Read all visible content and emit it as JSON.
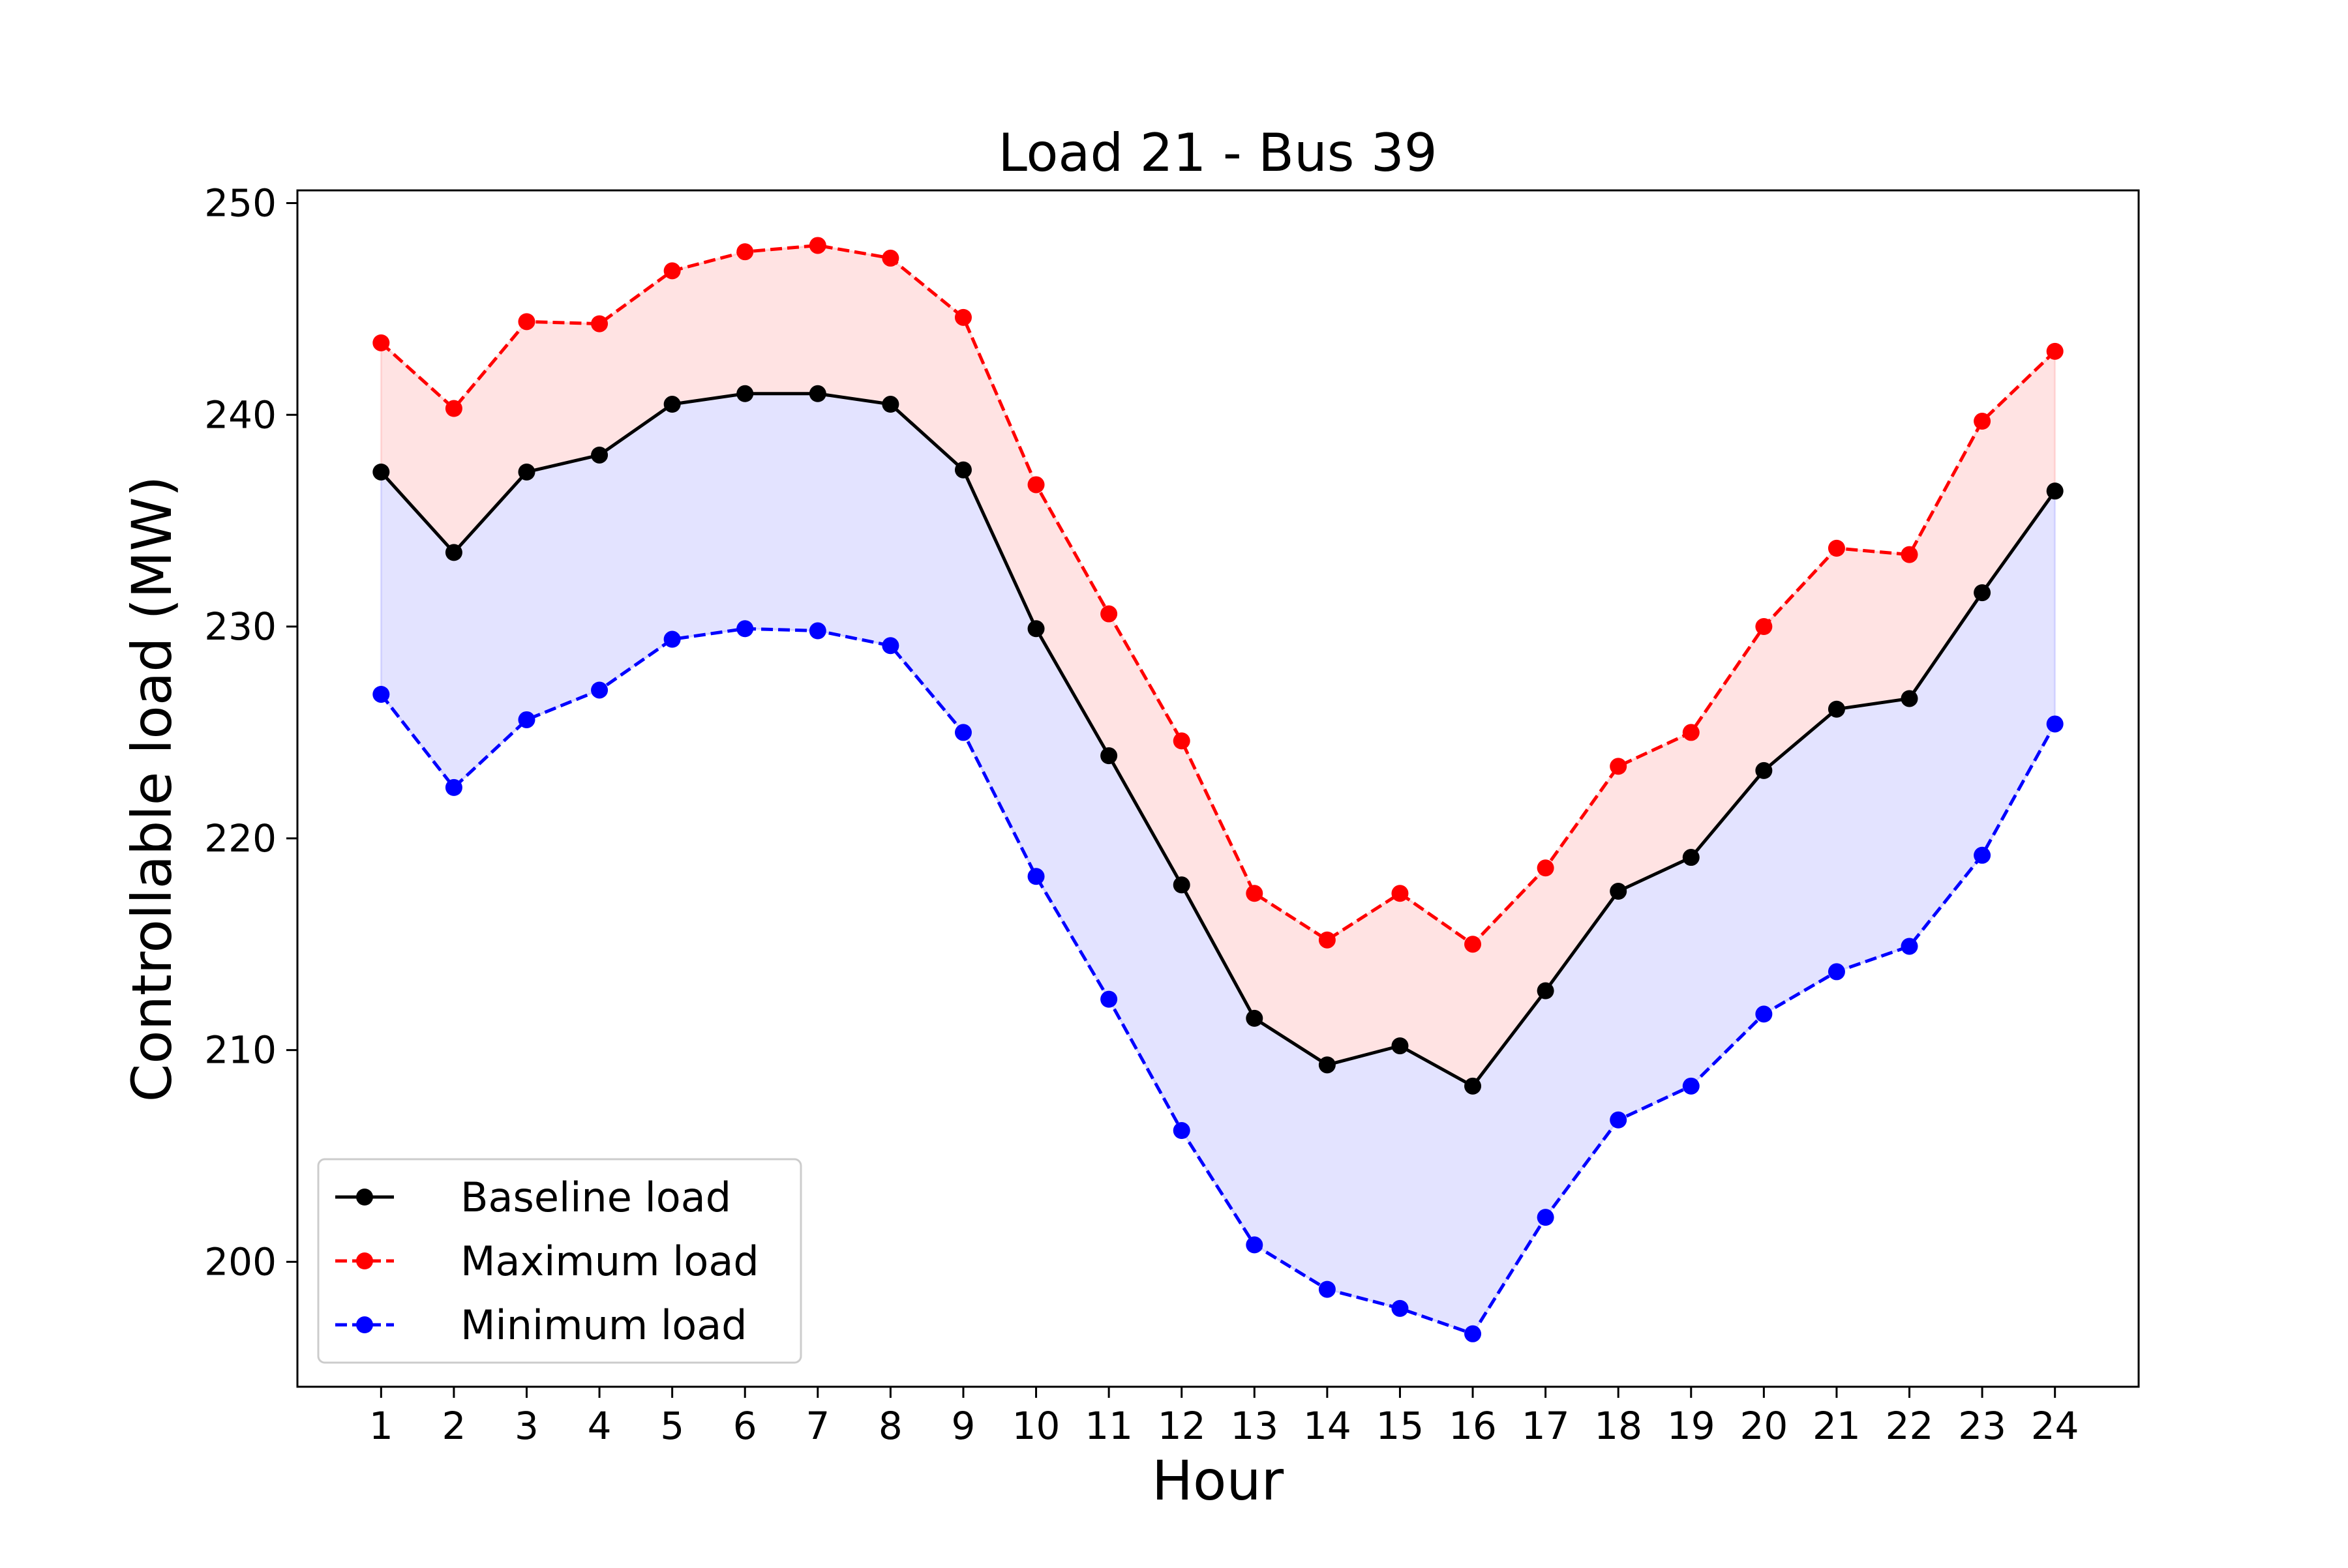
{
  "chart_data": {
    "type": "line",
    "title": "Load 21 - Bus 39",
    "xlabel": "Hour",
    "ylabel": "Controllable load (MW)",
    "x": [
      1,
      2,
      3,
      4,
      5,
      6,
      7,
      8,
      9,
      10,
      11,
      12,
      13,
      14,
      15,
      16,
      17,
      18,
      19,
      20,
      21,
      22,
      23,
      24
    ],
    "x_tick_labels": [
      "1",
      "2",
      "3",
      "4",
      "5",
      "6",
      "7",
      "8",
      "9",
      "10",
      "11",
      "12",
      "13",
      "14",
      "15",
      "16",
      "17",
      "18",
      "19",
      "20",
      "21",
      "22",
      "23",
      "24"
    ],
    "y_ticks": [
      200,
      210,
      220,
      230,
      240,
      250
    ],
    "y_tick_labels": [
      "200",
      "210",
      "220",
      "230",
      "240",
      "250"
    ],
    "xlim": [
      -0.15,
      25.15
    ],
    "ylim": [
      194.1,
      250.6
    ],
    "grid": false,
    "legend_position": "lower-left",
    "series": [
      {
        "name": "Baseline load",
        "color": "#000000",
        "line_style": "solid",
        "marker": "circle",
        "values": [
          237.3,
          233.5,
          237.3,
          238.1,
          240.5,
          241.0,
          241.0,
          240.5,
          237.4,
          229.9,
          223.9,
          217.8,
          211.5,
          209.3,
          210.2,
          208.3,
          212.8,
          217.5,
          219.1,
          223.2,
          226.1,
          226.6,
          231.6,
          236.4
        ]
      },
      {
        "name": "Maximum load",
        "color": "#ff0000",
        "line_style": "dashed",
        "marker": "circle",
        "values": [
          243.4,
          240.3,
          244.4,
          244.3,
          246.8,
          247.7,
          248.0,
          247.4,
          244.6,
          236.7,
          230.6,
          224.6,
          217.4,
          215.2,
          217.4,
          215.0,
          218.6,
          223.4,
          225.0,
          230.0,
          233.7,
          233.4,
          239.7,
          243.0
        ]
      },
      {
        "name": "Minimum load",
        "color": "#0000ff",
        "line_style": "dashed",
        "marker": "circle",
        "values": [
          226.8,
          222.4,
          225.6,
          227.0,
          229.4,
          229.9,
          229.8,
          229.1,
          225.0,
          218.2,
          212.4,
          206.2,
          200.8,
          198.7,
          197.8,
          196.6,
          202.1,
          206.7,
          208.3,
          211.7,
          213.7,
          214.9,
          219.2,
          225.4
        ]
      }
    ],
    "fill_colors": {
      "upper_band": "#ff0000",
      "lower_band": "#0000ff"
    }
  }
}
